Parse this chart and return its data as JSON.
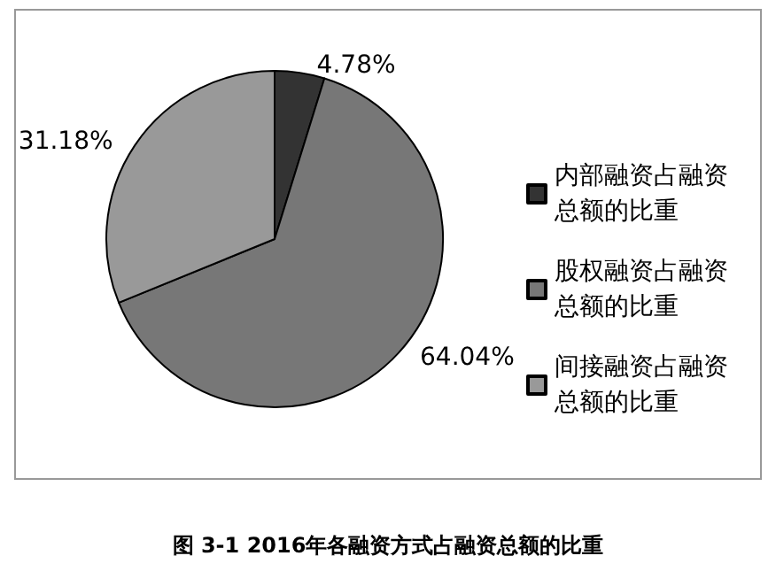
{
  "chart_data": {
    "type": "pie",
    "title": "图 3-1 2016年各融资方式占融资总额的比重",
    "categories": [
      "内部融资占融资总额的比重",
      "股权融资占融资总额的比重",
      "间接融资占融资总额的比重"
    ],
    "values": [
      4.78,
      64.04,
      31.18
    ],
    "colors": [
      "#333333",
      "#777777",
      "#999999"
    ],
    "value_labels": [
      "4.78%",
      "64.04%",
      "31.18%"
    ],
    "legend": "right"
  }
}
